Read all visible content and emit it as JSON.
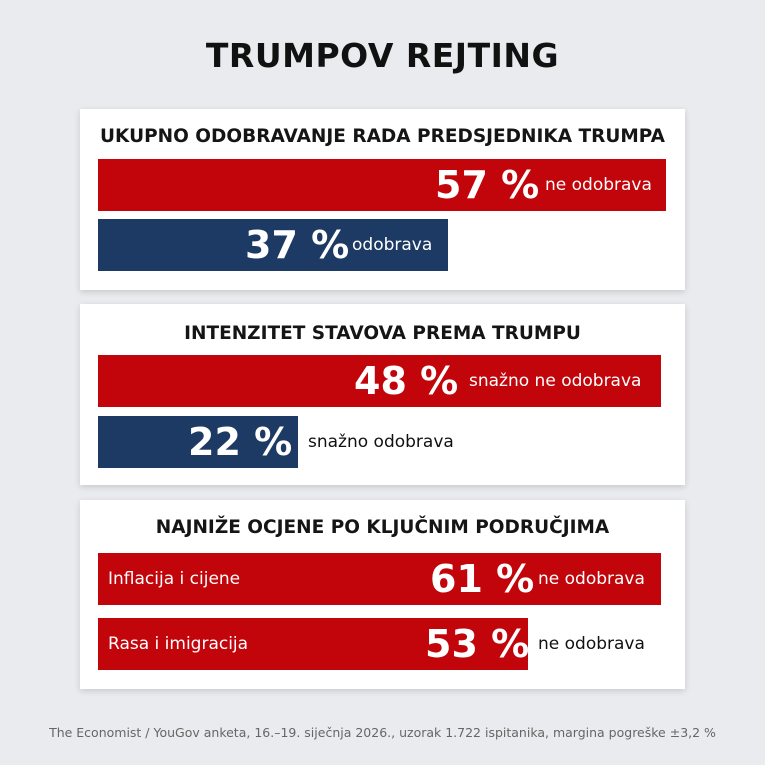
{
  "title": "TRUMPOV REJTING",
  "footer": "The Economist / YouGov anketa, 16.–19. siječnja 2026., uzorak 1.722 ispitanika, margina pogreške ±3,2 %",
  "colors": {
    "disapprove": "#c1050b",
    "approve": "#1c3a64",
    "background": "#e9ebee"
  },
  "chart_data": [
    {
      "type": "bar",
      "title": "UKUPNO ODOBRAVANJE RADA PREDSJEDNIKA TRUMPA",
      "orientation": "horizontal",
      "series": [
        {
          "value_label": "57 %",
          "value": 57,
          "label": "ne odobrava",
          "color": "#c1050b"
        },
        {
          "value_label": "37 %",
          "value": 37,
          "label": "odobrava",
          "color": "#1c3a64"
        }
      ]
    },
    {
      "type": "bar",
      "title": "INTENZITET STAVOVA PREMA TRUMPU",
      "orientation": "horizontal",
      "series": [
        {
          "value_label": "48 %",
          "value": 48,
          "label": "snažno ne odobrava",
          "color": "#c1050b"
        },
        {
          "value_label": "22 %",
          "value": 22,
          "label": "snažno odobrava",
          "color": "#1c3a64"
        }
      ]
    },
    {
      "type": "bar",
      "title": "NAJNIŽE OCJENE PO KLJUČNIM PODRUČJIMA",
      "orientation": "horizontal",
      "series": [
        {
          "category": "Inflacija i cijene",
          "value_label": "61 %",
          "value": 61,
          "label": "ne odobrava",
          "color": "#c1050b"
        },
        {
          "category": "Rasa i imigracija",
          "value_label": "53 %",
          "value": 53,
          "label": "ne odobrava",
          "color": "#c1050b"
        }
      ]
    }
  ]
}
